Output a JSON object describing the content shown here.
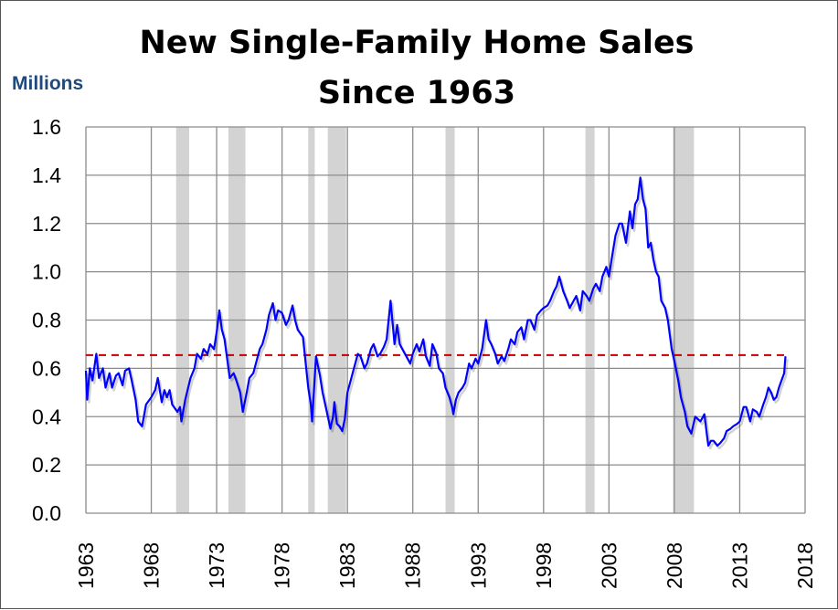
{
  "chart_data": {
    "type": "line",
    "title": [
      "New Single-Family Home Sales",
      "Since 1963"
    ],
    "ylabel": "Millions",
    "xlabel": "",
    "xlim": [
      1963,
      2018
    ],
    "ylim": [
      0,
      1.6
    ],
    "grid": true,
    "xticks": [
      "1963",
      "1968",
      "1973",
      "1978",
      "1983",
      "1988",
      "1993",
      "1998",
      "2003",
      "2008",
      "2013",
      "2018"
    ],
    "yticks": [
      "0.0",
      "0.2",
      "0.4",
      "0.6",
      "0.8",
      "1.0",
      "1.2",
      "1.4",
      "1.6"
    ],
    "line_color": "#0000ff",
    "reference_line": {
      "value": 0.655,
      "from": 1963,
      "to": 2016.5,
      "color": "#c00000",
      "style": "dashed"
    },
    "recession_color": "#d3d3d3",
    "recessions": [
      [
        1969.9,
        1970.9
      ],
      [
        1973.9,
        1975.2
      ],
      [
        1980.0,
        1980.5
      ],
      [
        1981.5,
        1982.9
      ],
      [
        1990.5,
        1991.2
      ],
      [
        2001.2,
        2001.9
      ],
      [
        2007.9,
        2009.5
      ]
    ],
    "series": [
      {
        "name": "New single-family home sales",
        "points": [
          [
            1963.0,
            0.59
          ],
          [
            1963.1,
            0.47
          ],
          [
            1963.3,
            0.6
          ],
          [
            1963.5,
            0.55
          ],
          [
            1963.8,
            0.66
          ],
          [
            1964.0,
            0.56
          ],
          [
            1964.3,
            0.6
          ],
          [
            1964.5,
            0.52
          ],
          [
            1964.8,
            0.58
          ],
          [
            1965.0,
            0.52
          ],
          [
            1965.3,
            0.57
          ],
          [
            1965.5,
            0.58
          ],
          [
            1965.8,
            0.53
          ],
          [
            1966.0,
            0.59
          ],
          [
            1966.3,
            0.6
          ],
          [
            1966.5,
            0.55
          ],
          [
            1966.8,
            0.47
          ],
          [
            1967.0,
            0.38
          ],
          [
            1967.3,
            0.36
          ],
          [
            1967.6,
            0.45
          ],
          [
            1968.0,
            0.48
          ],
          [
            1968.3,
            0.51
          ],
          [
            1968.5,
            0.56
          ],
          [
            1968.8,
            0.46
          ],
          [
            1969.0,
            0.51
          ],
          [
            1969.2,
            0.48
          ],
          [
            1969.4,
            0.51
          ],
          [
            1969.6,
            0.45
          ],
          [
            1970.0,
            0.42
          ],
          [
            1970.2,
            0.44
          ],
          [
            1970.3,
            0.38
          ],
          [
            1970.6,
            0.47
          ],
          [
            1971.0,
            0.56
          ],
          [
            1971.3,
            0.6
          ],
          [
            1971.5,
            0.66
          ],
          [
            1971.8,
            0.64
          ],
          [
            1972.0,
            0.68
          ],
          [
            1972.3,
            0.66
          ],
          [
            1972.5,
            0.7
          ],
          [
            1972.8,
            0.68
          ],
          [
            1973.0,
            0.75
          ],
          [
            1973.2,
            0.84
          ],
          [
            1973.4,
            0.76
          ],
          [
            1973.6,
            0.72
          ],
          [
            1974.0,
            0.56
          ],
          [
            1974.3,
            0.58
          ],
          [
            1974.5,
            0.55
          ],
          [
            1974.8,
            0.5
          ],
          [
            1975.0,
            0.42
          ],
          [
            1975.3,
            0.5
          ],
          [
            1975.5,
            0.56
          ],
          [
            1975.8,
            0.58
          ],
          [
            1976.0,
            0.62
          ],
          [
            1976.3,
            0.68
          ],
          [
            1976.5,
            0.7
          ],
          [
            1976.8,
            0.76
          ],
          [
            1977.0,
            0.82
          ],
          [
            1977.3,
            0.87
          ],
          [
            1977.5,
            0.8
          ],
          [
            1977.7,
            0.84
          ],
          [
            1978.0,
            0.83
          ],
          [
            1978.3,
            0.78
          ],
          [
            1978.5,
            0.8
          ],
          [
            1978.8,
            0.86
          ],
          [
            1979.0,
            0.8
          ],
          [
            1979.2,
            0.76
          ],
          [
            1979.6,
            0.73
          ],
          [
            1980.0,
            0.52
          ],
          [
            1980.2,
            0.45
          ],
          [
            1980.3,
            0.38
          ],
          [
            1980.6,
            0.65
          ],
          [
            1980.9,
            0.57
          ],
          [
            1981.1,
            0.5
          ],
          [
            1981.3,
            0.45
          ],
          [
            1981.7,
            0.35
          ],
          [
            1981.9,
            0.4
          ],
          [
            1982.0,
            0.46
          ],
          [
            1982.2,
            0.37
          ],
          [
            1982.4,
            0.36
          ],
          [
            1982.6,
            0.34
          ],
          [
            1982.8,
            0.39
          ],
          [
            1983.0,
            0.5
          ],
          [
            1983.3,
            0.56
          ],
          [
            1983.5,
            0.6
          ],
          [
            1983.8,
            0.66
          ],
          [
            1984.0,
            0.65
          ],
          [
            1984.3,
            0.6
          ],
          [
            1984.5,
            0.62
          ],
          [
            1984.8,
            0.68
          ],
          [
            1985.0,
            0.7
          ],
          [
            1985.3,
            0.65
          ],
          [
            1985.5,
            0.66
          ],
          [
            1985.8,
            0.69
          ],
          [
            1986.0,
            0.72
          ],
          [
            1986.3,
            0.88
          ],
          [
            1986.5,
            0.76
          ],
          [
            1986.6,
            0.7
          ],
          [
            1986.8,
            0.78
          ],
          [
            1987.0,
            0.7
          ],
          [
            1987.3,
            0.67
          ],
          [
            1987.5,
            0.65
          ],
          [
            1987.8,
            0.62
          ],
          [
            1988.0,
            0.66
          ],
          [
            1988.3,
            0.7
          ],
          [
            1988.5,
            0.67
          ],
          [
            1988.8,
            0.72
          ],
          [
            1989.0,
            0.65
          ],
          [
            1989.3,
            0.61
          ],
          [
            1989.5,
            0.7
          ],
          [
            1989.8,
            0.66
          ],
          [
            1990.0,
            0.6
          ],
          [
            1990.3,
            0.58
          ],
          [
            1990.5,
            0.52
          ],
          [
            1990.8,
            0.48
          ],
          [
            1991.0,
            0.44
          ],
          [
            1991.1,
            0.41
          ],
          [
            1991.3,
            0.47
          ],
          [
            1991.5,
            0.5
          ],
          [
            1991.8,
            0.52
          ],
          [
            1992.0,
            0.54
          ],
          [
            1992.3,
            0.62
          ],
          [
            1992.5,
            0.6
          ],
          [
            1992.8,
            0.64
          ],
          [
            1993.0,
            0.62
          ],
          [
            1993.3,
            0.68
          ],
          [
            1993.6,
            0.8
          ],
          [
            1993.8,
            0.72
          ],
          [
            1994.0,
            0.7
          ],
          [
            1994.3,
            0.66
          ],
          [
            1994.5,
            0.62
          ],
          [
            1994.8,
            0.65
          ],
          [
            1995.0,
            0.63
          ],
          [
            1995.3,
            0.68
          ],
          [
            1995.5,
            0.72
          ],
          [
            1995.8,
            0.7
          ],
          [
            1996.0,
            0.75
          ],
          [
            1996.3,
            0.77
          ],
          [
            1996.5,
            0.72
          ],
          [
            1996.8,
            0.8
          ],
          [
            1997.0,
            0.8
          ],
          [
            1997.3,
            0.76
          ],
          [
            1997.5,
            0.82
          ],
          [
            1997.8,
            0.84
          ],
          [
            1998.0,
            0.85
          ],
          [
            1998.3,
            0.86
          ],
          [
            1998.5,
            0.88
          ],
          [
            1998.8,
            0.92
          ],
          [
            1999.0,
            0.94
          ],
          [
            1999.2,
            0.98
          ],
          [
            1999.5,
            0.92
          ],
          [
            1999.8,
            0.88
          ],
          [
            2000.0,
            0.85
          ],
          [
            2000.3,
            0.88
          ],
          [
            2000.5,
            0.9
          ],
          [
            2000.8,
            0.84
          ],
          [
            2001.0,
            0.92
          ],
          [
            2001.3,
            0.9
          ],
          [
            2001.5,
            0.88
          ],
          [
            2001.8,
            0.93
          ],
          [
            2002.0,
            0.95
          ],
          [
            2002.3,
            0.92
          ],
          [
            2002.5,
            0.98
          ],
          [
            2002.8,
            1.02
          ],
          [
            2003.0,
            0.98
          ],
          [
            2003.2,
            1.05
          ],
          [
            2003.5,
            1.15
          ],
          [
            2003.8,
            1.2
          ],
          [
            2004.0,
            1.2
          ],
          [
            2004.3,
            1.12
          ],
          [
            2004.6,
            1.25
          ],
          [
            2004.8,
            1.18
          ],
          [
            2005.0,
            1.28
          ],
          [
            2005.2,
            1.3
          ],
          [
            2005.4,
            1.39
          ],
          [
            2005.6,
            1.3
          ],
          [
            2005.8,
            1.26
          ],
          [
            2006.0,
            1.1
          ],
          [
            2006.2,
            1.12
          ],
          [
            2006.4,
            1.05
          ],
          [
            2006.6,
            1.0
          ],
          [
            2006.8,
            0.98
          ],
          [
            2007.0,
            0.88
          ],
          [
            2007.3,
            0.85
          ],
          [
            2007.5,
            0.8
          ],
          [
            2007.8,
            0.68
          ],
          [
            2008.0,
            0.63
          ],
          [
            2008.3,
            0.55
          ],
          [
            2008.5,
            0.48
          ],
          [
            2008.8,
            0.42
          ],
          [
            2009.0,
            0.36
          ],
          [
            2009.3,
            0.33
          ],
          [
            2009.6,
            0.4
          ],
          [
            2009.8,
            0.39
          ],
          [
            2010.0,
            0.38
          ],
          [
            2010.3,
            0.41
          ],
          [
            2010.5,
            0.32
          ],
          [
            2010.6,
            0.28
          ],
          [
            2010.8,
            0.3
          ],
          [
            2011.0,
            0.3
          ],
          [
            2011.3,
            0.28
          ],
          [
            2011.5,
            0.29
          ],
          [
            2011.8,
            0.31
          ],
          [
            2012.0,
            0.34
          ],
          [
            2012.3,
            0.35
          ],
          [
            2012.5,
            0.36
          ],
          [
            2012.8,
            0.37
          ],
          [
            2013.0,
            0.38
          ],
          [
            2013.3,
            0.44
          ],
          [
            2013.5,
            0.44
          ],
          [
            2013.8,
            0.38
          ],
          [
            2014.0,
            0.43
          ],
          [
            2014.3,
            0.42
          ],
          [
            2014.5,
            0.4
          ],
          [
            2014.8,
            0.45
          ],
          [
            2015.0,
            0.48
          ],
          [
            2015.2,
            0.52
          ],
          [
            2015.4,
            0.5
          ],
          [
            2015.6,
            0.47
          ],
          [
            2015.8,
            0.48
          ],
          [
            2016.0,
            0.52
          ],
          [
            2016.2,
            0.55
          ],
          [
            2016.4,
            0.58
          ],
          [
            2016.5,
            0.65
          ]
        ]
      }
    ]
  }
}
